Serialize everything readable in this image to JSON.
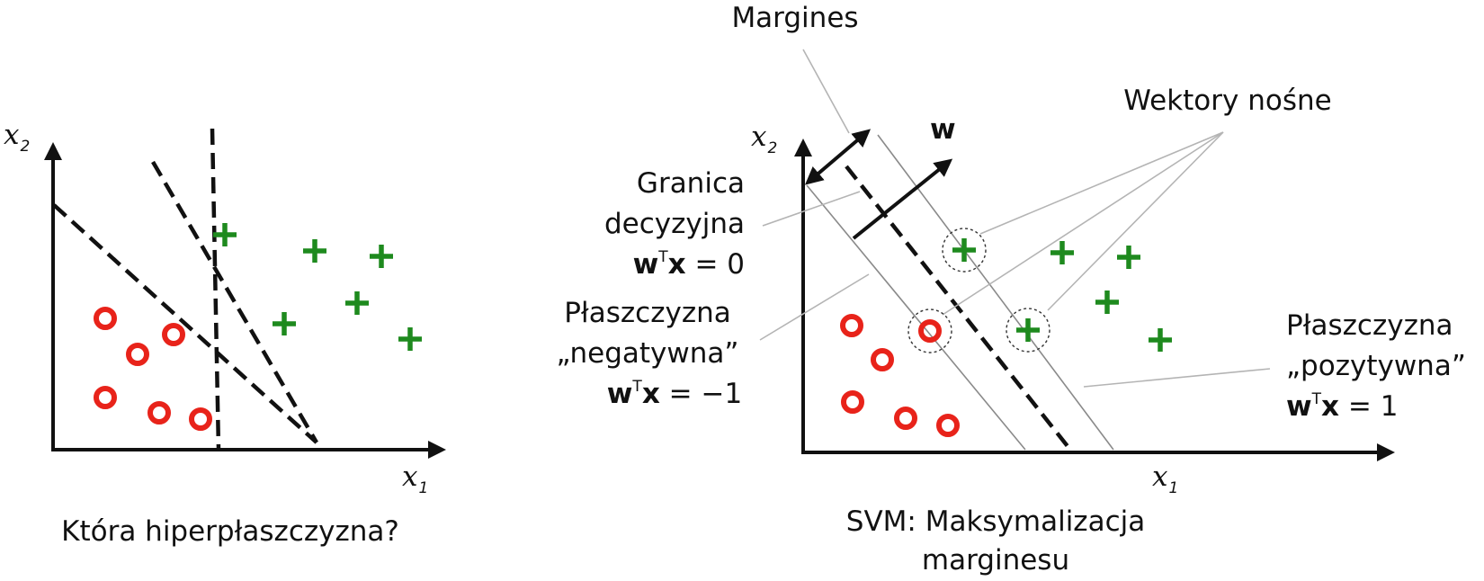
{
  "left_panel": {
    "caption": "Która hiperpłaszczyzna?",
    "x_label": "x",
    "x_sub": "1",
    "y_label": "x",
    "y_sub": "2"
  },
  "right_panel": {
    "caption_line1": "SVM: Maksymalizacja",
    "caption_line2": "marginesu",
    "x_label": "x",
    "x_sub": "1",
    "y_label": "x",
    "y_sub": "2",
    "margins_label": "Margines",
    "support_vectors_label": "Wektory nośne",
    "w_label": "w",
    "boundary": {
      "line1": "Granica",
      "line2": "decyzyjna",
      "eq_w": "w",
      "eq_t": "T",
      "eq_x": "x",
      "eq_rhs": " = 0"
    },
    "negative_plane": {
      "line1": "Płaszczyzna",
      "line2": "„negatywna”",
      "eq_w": "w",
      "eq_t": "T",
      "eq_x": "x",
      "eq_rhs": " = −1"
    },
    "positive_plane": {
      "line1": "Płaszczyzna",
      "line2": "„pozytywna”",
      "eq_w": "w",
      "eq_t": "T",
      "eq_x": "x",
      "eq_rhs": " = 1"
    }
  },
  "colors": {
    "negative_class": "#e8231a",
    "positive_class": "#1e8a1e",
    "ink": "#111111"
  },
  "icons": {
    "negative_marker": "circle-icon",
    "positive_marker": "plus-icon"
  }
}
